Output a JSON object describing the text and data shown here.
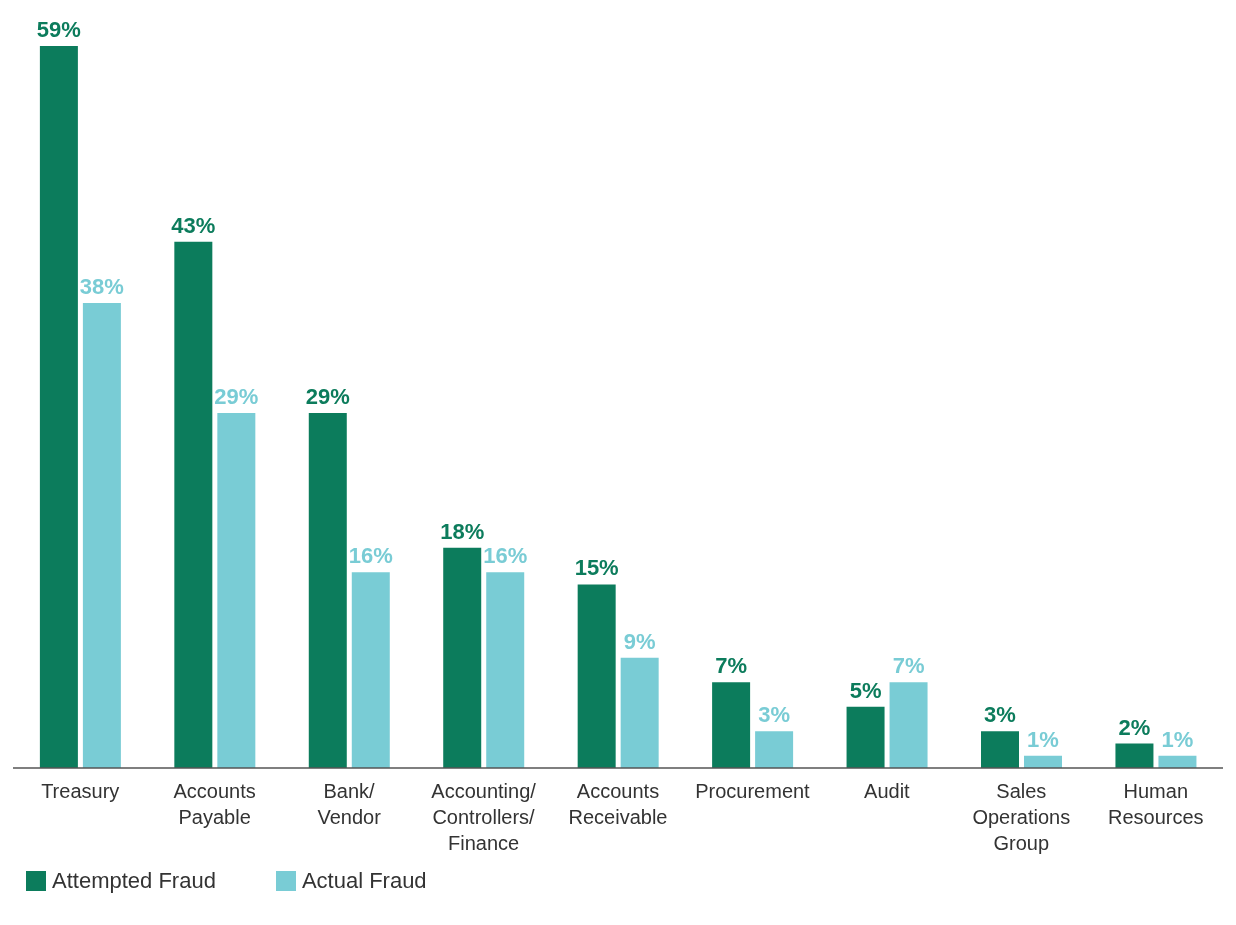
{
  "chart_data": {
    "type": "bar",
    "categories": [
      "Treasury",
      "Accounts Payable",
      "Bank/Vendor",
      "Accounting/Controllers/Finance",
      "Accounts Receivable",
      "Procurement",
      "Audit",
      "Sales Operations Group",
      "Human Resources"
    ],
    "series": [
      {
        "name": "Attempted Fraud",
        "color": "#0c7c5c",
        "values": [
          59,
          43,
          29,
          18,
          15,
          7,
          5,
          3,
          2
        ],
        "value_labels": [
          "59%",
          "43%",
          "29%",
          "18%",
          "15%",
          "7%",
          "5%",
          "3%",
          "2%"
        ]
      },
      {
        "name": "Actual Fraud",
        "color": "#79ccd5",
        "values": [
          38,
          29,
          16,
          16,
          9,
          3,
          7,
          1,
          1
        ],
        "value_labels": [
          "38%",
          "29%",
          "16%",
          "16%",
          "9%",
          "3%",
          "7%",
          "1%",
          "1%"
        ]
      }
    ],
    "legend": "bottom left",
    "grid": false
  }
}
